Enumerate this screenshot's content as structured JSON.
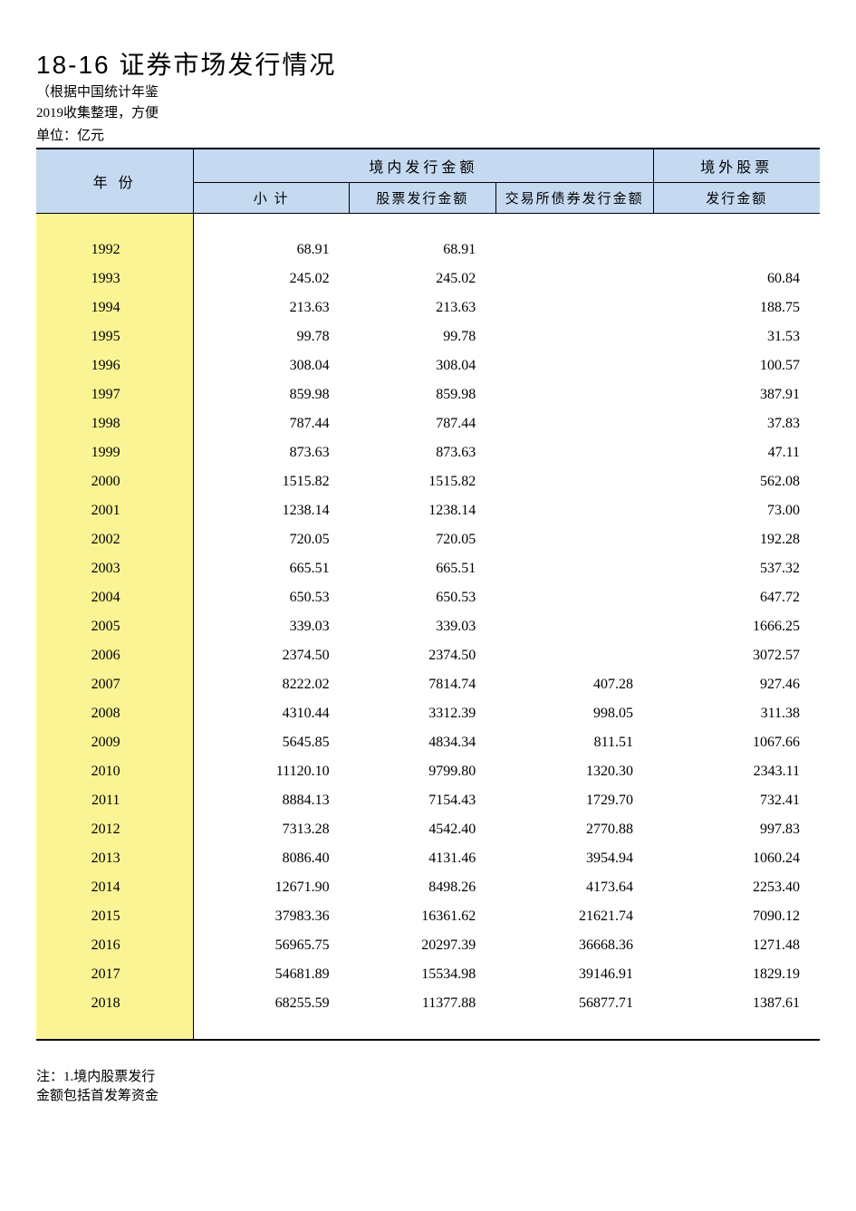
{
  "header": {
    "title": "18-16  证券市场发行情况",
    "subtitle_line1": "（根据中国统计年鉴",
    "subtitle_line2": "2019收集整理，方便",
    "unit": "单位：亿元"
  },
  "columns": {
    "year": "年 份",
    "domestic_group": "境内发行金额",
    "subtotal": "小 计",
    "stock": "股票发行金额",
    "bond": "交易所债券发行金额",
    "overseas_line1": "境外股票",
    "overseas_line2": "发行金额"
  },
  "rows": [
    {
      "year": "1992",
      "subtotal": "68.91",
      "stock": "68.91",
      "bond": "",
      "overseas": ""
    },
    {
      "year": "1993",
      "subtotal": "245.02",
      "stock": "245.02",
      "bond": "",
      "overseas": "60.84"
    },
    {
      "year": "1994",
      "subtotal": "213.63",
      "stock": "213.63",
      "bond": "",
      "overseas": "188.75"
    },
    {
      "year": "1995",
      "subtotal": "99.78",
      "stock": "99.78",
      "bond": "",
      "overseas": "31.53"
    },
    {
      "year": "1996",
      "subtotal": "308.04",
      "stock": "308.04",
      "bond": "",
      "overseas": "100.57"
    },
    {
      "year": "1997",
      "subtotal": "859.98",
      "stock": "859.98",
      "bond": "",
      "overseas": "387.91"
    },
    {
      "year": "1998",
      "subtotal": "787.44",
      "stock": "787.44",
      "bond": "",
      "overseas": "37.83"
    },
    {
      "year": "1999",
      "subtotal": "873.63",
      "stock": "873.63",
      "bond": "",
      "overseas": "47.11"
    },
    {
      "year": "2000",
      "subtotal": "1515.82",
      "stock": "1515.82",
      "bond": "",
      "overseas": "562.08"
    },
    {
      "year": "2001",
      "subtotal": "1238.14",
      "stock": "1238.14",
      "bond": "",
      "overseas": "73.00"
    },
    {
      "year": "2002",
      "subtotal": "720.05",
      "stock": "720.05",
      "bond": "",
      "overseas": "192.28"
    },
    {
      "year": "2003",
      "subtotal": "665.51",
      "stock": "665.51",
      "bond": "",
      "overseas": "537.32"
    },
    {
      "year": "2004",
      "subtotal": "650.53",
      "stock": "650.53",
      "bond": "",
      "overseas": "647.72"
    },
    {
      "year": "2005",
      "subtotal": "339.03",
      "stock": "339.03",
      "bond": "",
      "overseas": "1666.25"
    },
    {
      "year": "2006",
      "subtotal": "2374.50",
      "stock": "2374.50",
      "bond": "",
      "overseas": "3072.57"
    },
    {
      "year": "2007",
      "subtotal": "8222.02",
      "stock": "7814.74",
      "bond": "407.28",
      "overseas": "927.46"
    },
    {
      "year": "2008",
      "subtotal": "4310.44",
      "stock": "3312.39",
      "bond": "998.05",
      "overseas": "311.38"
    },
    {
      "year": "2009",
      "subtotal": "5645.85",
      "stock": "4834.34",
      "bond": "811.51",
      "overseas": "1067.66"
    },
    {
      "year": "2010",
      "subtotal": "11120.10",
      "stock": "9799.80",
      "bond": "1320.30",
      "overseas": "2343.11"
    },
    {
      "year": "2011",
      "subtotal": "8884.13",
      "stock": "7154.43",
      "bond": "1729.70",
      "overseas": "732.41"
    },
    {
      "year": "2012",
      "subtotal": "7313.28",
      "stock": "4542.40",
      "bond": "2770.88",
      "overseas": "997.83"
    },
    {
      "year": "2013",
      "subtotal": "8086.40",
      "stock": "4131.46",
      "bond": "3954.94",
      "overseas": "1060.24"
    },
    {
      "year": "2014",
      "subtotal": "12671.90",
      "stock": "8498.26",
      "bond": "4173.64",
      "overseas": "2253.40"
    },
    {
      "year": "2015",
      "subtotal": "37983.36",
      "stock": "16361.62",
      "bond": "21621.74",
      "overseas": "7090.12"
    },
    {
      "year": "2016",
      "subtotal": "56965.75",
      "stock": "20297.39",
      "bond": "36668.36",
      "overseas": "1271.48"
    },
    {
      "year": "2017",
      "subtotal": "54681.89",
      "stock": "15534.98",
      "bond": "39146.91",
      "overseas": "1829.19"
    },
    {
      "year": "2018",
      "subtotal": "68255.59",
      "stock": "11377.88",
      "bond": "56877.71",
      "overseas": "1387.61"
    }
  ],
  "footnote": {
    "line1": "注：1.境内股票发行",
    "line2": "金额包括首发筹资金"
  },
  "colors": {
    "header_bg": "#c5d9f1",
    "year_col_bg": "#fbf495",
    "border": "#000000",
    "text": "#000000",
    "background": "#ffffff"
  }
}
